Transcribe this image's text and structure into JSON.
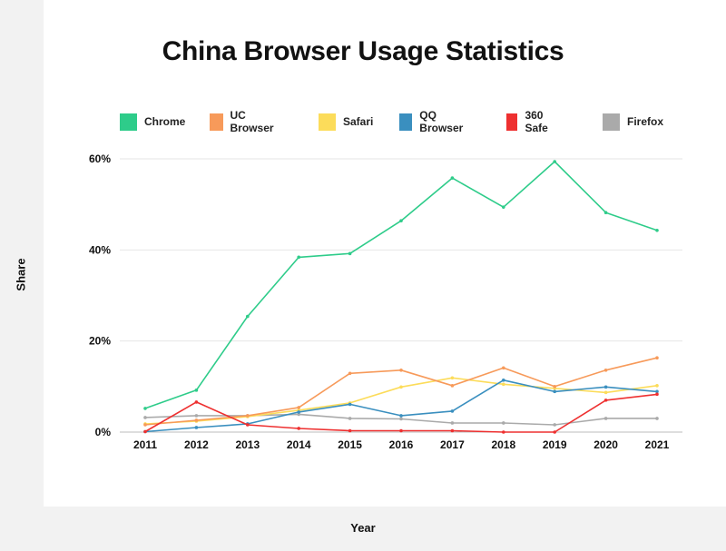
{
  "chart_data": {
    "type": "line",
    "title": "China Browser Usage Statistics",
    "xlabel": "Year",
    "ylabel": "Share",
    "x": [
      "2011",
      "2012",
      "2013",
      "2014",
      "2015",
      "2016",
      "2017",
      "2018",
      "2019",
      "2020",
      "2021"
    ],
    "ylim": [
      0,
      60
    ],
    "yticks": [
      0,
      20,
      40,
      60
    ],
    "ytick_labels": [
      "0%",
      "20%",
      "40%",
      "60%"
    ],
    "grid": true,
    "legend_position": "top",
    "series": [
      {
        "name": "Chrome",
        "color": "#2ecc8a",
        "values": [
          5.2,
          9.2,
          25.4,
          38.4,
          39.2,
          46.4,
          55.8,
          49.4,
          59.4,
          48.2,
          44.3
        ]
      },
      {
        "name": "UC Browser",
        "color": "#f79a5a",
        "values": [
          1.6,
          2.6,
          3.6,
          5.4,
          12.9,
          13.6,
          10.2,
          14.1,
          10.0,
          13.6,
          16.3
        ]
      },
      {
        "name": "Safari",
        "color": "#fcdc5a",
        "values": [
          1.8,
          2.4,
          3.4,
          4.8,
          6.4,
          9.9,
          11.9,
          10.5,
          9.6,
          8.7,
          10.2
        ]
      },
      {
        "name": "QQ Browser",
        "color": "#3a8fbf",
        "values": [
          0.1,
          1.0,
          1.8,
          4.4,
          6.1,
          3.6,
          4.6,
          11.4,
          8.9,
          9.9,
          8.9
        ]
      },
      {
        "name": "360 Safe",
        "color": "#ee3030",
        "values": [
          0.1,
          6.6,
          1.6,
          0.8,
          0.3,
          0.3,
          0.3,
          0.0,
          0.0,
          7.0,
          8.3
        ]
      },
      {
        "name": "Firefox",
        "color": "#aaaaaa",
        "values": [
          3.2,
          3.6,
          3.6,
          3.9,
          3.0,
          2.9,
          2.0,
          2.0,
          1.6,
          3.0,
          3.0
        ]
      }
    ]
  }
}
